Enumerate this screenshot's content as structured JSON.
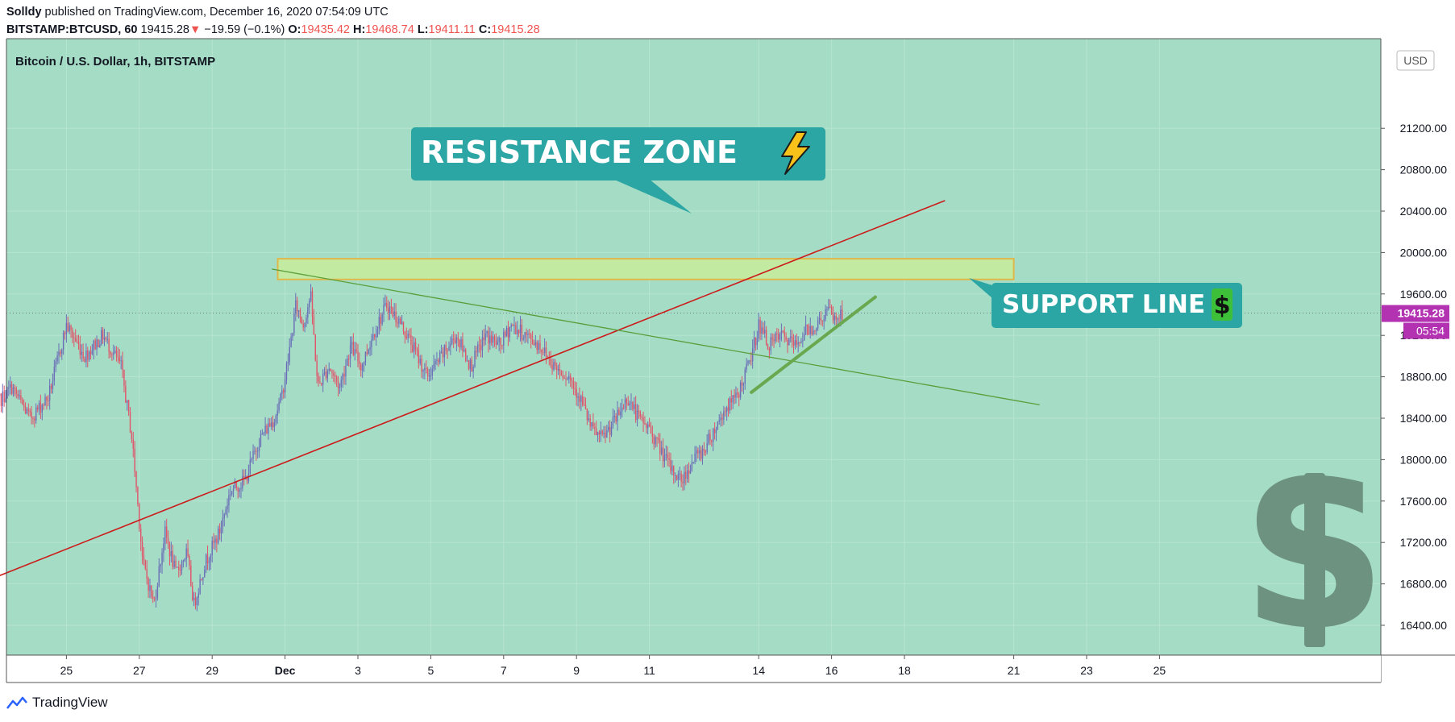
{
  "header": {
    "author": "Solldy",
    "published_text": "published on TradingView.com, December 16, 2020 07:54:09 UTC",
    "symbol": "BITSTAMP:BTCUSD, 60",
    "last": "19415.28",
    "change": "−19.59 (−0.1%)",
    "open_label": "O:",
    "open": "19435.42",
    "high_label": "H:",
    "high": "19468.74",
    "low_label": "L:",
    "low": "19411.11",
    "close_label": "C:",
    "close": "19415.28"
  },
  "footer": {
    "brand": "TradingView"
  },
  "chart_data": {
    "type": "candlestick",
    "title": "Bitcoin / U.S. Dollar, 1h, BITSTAMP",
    "currency": "USD",
    "last_price": 19415.28,
    "last_price_label": "19415.28",
    "countdown": "05:54",
    "y_ticks": [
      16400,
      16800,
      17200,
      17600,
      18000,
      18400,
      18800,
      19200,
      19600,
      20000,
      20400,
      20800,
      21200
    ],
    "y_tick_labels": [
      "16400.00",
      "16800.00",
      "17200.00",
      "17600.00",
      "18000.00",
      "18400.00",
      "18800.00",
      "19200.00",
      "19600.00",
      "20000.00",
      "20400.00",
      "20800.00",
      "21200.00"
    ],
    "x_tick_labels": [
      "25",
      "27",
      "29",
      "Dec",
      "3",
      "5",
      "7",
      "9",
      "11",
      "14",
      "16",
      "18",
      "21",
      "23",
      "25"
    ],
    "x_tick_days": [
      24.5,
      26.5,
      28.5,
      30.5,
      32.5,
      34.5,
      36.5,
      38.5,
      40.5,
      43.5,
      45.5,
      47.5,
      50.5,
      52.5,
      54.5
    ],
    "x_unit": "days since Nov 1, 2020 (Nov 30 = 30, Dec 1 = 31)",
    "price_path": [
      [
        22.5,
        18500
      ],
      [
        23,
        18700
      ],
      [
        23.5,
        18400
      ],
      [
        24,
        18600
      ],
      [
        24.5,
        19300
      ],
      [
        25,
        19000
      ],
      [
        25.5,
        19200
      ],
      [
        26,
        18900
      ],
      [
        26.3,
        18200
      ],
      [
        26.6,
        17000
      ],
      [
        26.9,
        16600
      ],
      [
        27.2,
        17300
      ],
      [
        27.5,
        16900
      ],
      [
        27.8,
        17100
      ],
      [
        28,
        16600
      ],
      [
        28.3,
        17000
      ],
      [
        28.7,
        17300
      ],
      [
        29,
        17700
      ],
      [
        29.4,
        17800
      ],
      [
        29.8,
        18200
      ],
      [
        30.2,
        18400
      ],
      [
        30.4,
        18600
      ],
      [
        30.6,
        19000
      ],
      [
        30.8,
        19500
      ],
      [
        31,
        19300
      ],
      [
        31.2,
        19600
      ],
      [
        31.4,
        18700
      ],
      [
        31.7,
        18900
      ],
      [
        32,
        18700
      ],
      [
        32.3,
        19100
      ],
      [
        32.6,
        18900
      ],
      [
        32.9,
        19200
      ],
      [
        33.3,
        19500
      ],
      [
        33.7,
        19300
      ],
      [
        34,
        19100
      ],
      [
        34.4,
        18800
      ],
      [
        34.8,
        19000
      ],
      [
        35.2,
        19200
      ],
      [
        35.6,
        18900
      ],
      [
        36,
        19200
      ],
      [
        36.4,
        19100
      ],
      [
        36.7,
        19300
      ],
      [
        37.1,
        19200
      ],
      [
        37.5,
        19100
      ],
      [
        37.9,
        18900
      ],
      [
        38.3,
        18800
      ],
      [
        38.6,
        18600
      ],
      [
        38.9,
        18300
      ],
      [
        39.2,
        18200
      ],
      [
        39.6,
        18400
      ],
      [
        39.9,
        18600
      ],
      [
        40.2,
        18400
      ],
      [
        40.5,
        18300
      ],
      [
        40.8,
        18100
      ],
      [
        41.1,
        17900
      ],
      [
        41.4,
        17800
      ],
      [
        41.7,
        18000
      ],
      [
        42,
        18100
      ],
      [
        42.3,
        18300
      ],
      [
        42.6,
        18500
      ],
      [
        42.9,
        18600
      ],
      [
        43.1,
        18800
      ],
      [
        43.3,
        19000
      ],
      [
        43.5,
        19300
      ],
      [
        43.8,
        19100
      ],
      [
        44.1,
        19200
      ],
      [
        44.5,
        19100
      ],
      [
        44.8,
        19250
      ],
      [
        45.1,
        19300
      ],
      [
        45.4,
        19450
      ],
      [
        45.6,
        19350
      ],
      [
        45.8,
        19415.28
      ]
    ],
    "regions": [
      {
        "label": "RESISTANCE ZONE",
        "x0": 30.3,
        "x1": 50.5,
        "y0": 19740,
        "y1": 19940
      }
    ],
    "trendlines": [
      {
        "name": "rising-trendline",
        "color": "#cc1b1b",
        "x0": 22.45,
        "y0": 16850,
        "x1": 48.6,
        "y1": 20500,
        "width": 1.6
      },
      {
        "name": "descending-trendline",
        "color": "#5a9e3a",
        "x0": 30.15,
        "y0": 19840,
        "x1": 51.2,
        "y1": 18530,
        "width": 1.3
      },
      {
        "name": "support-line",
        "color": "#6aa84f",
        "x0": 43.3,
        "y0": 18650,
        "x1": 46.7,
        "y1": 19570,
        "width": 4
      }
    ],
    "annotations": [
      {
        "label": "RESISTANCE ZONE",
        "icon": "⚡"
      },
      {
        "label": "SUPPORT LINE",
        "icon": "💲"
      }
    ]
  }
}
